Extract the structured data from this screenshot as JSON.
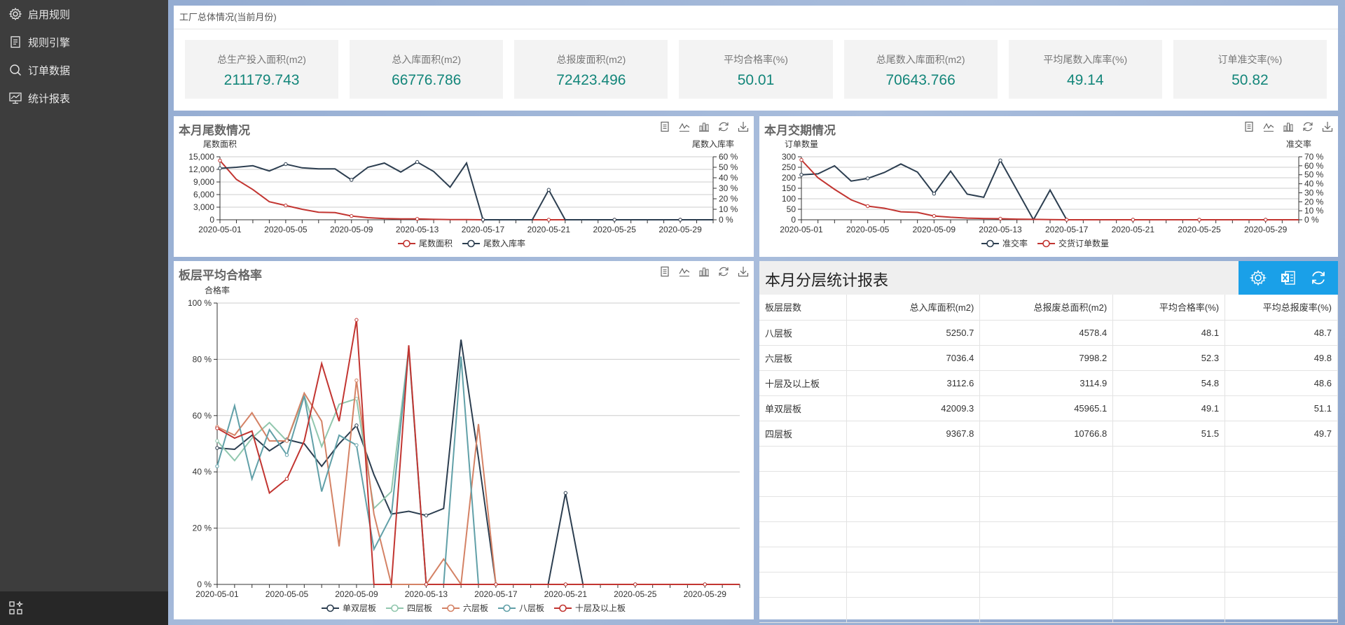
{
  "sidebar": {
    "items": [
      {
        "label": "启用规则",
        "icon": "gear-icon"
      },
      {
        "label": "规则引擎",
        "icon": "document-icon"
      },
      {
        "label": "订单数据",
        "icon": "search-icon"
      },
      {
        "label": "统计报表",
        "icon": "chart-monitor-icon"
      }
    ],
    "bottom_icon": "grid-star-icon"
  },
  "summary": {
    "title": "工厂总体情况(当前月份)",
    "kpis": [
      {
        "label": "总生产投入面积(m2)",
        "value": "211179.743"
      },
      {
        "label": "总入库面积(m2)",
        "value": "66776.786"
      },
      {
        "label": "总报废面积(m2)",
        "value": "72423.496"
      },
      {
        "label": "平均合格率(%)",
        "value": "50.01"
      },
      {
        "label": "总尾数入库面积(m2)",
        "value": "70643.766"
      },
      {
        "label": "平均尾数入库率(%)",
        "value": "49.14"
      },
      {
        "label": "订单准交率(%)",
        "value": "50.82"
      }
    ]
  },
  "colors": {
    "navy": "#2c3e50",
    "red": "#c23531",
    "teal": "#91c7ae",
    "orange": "#d48265",
    "steel": "#61a0a8",
    "kpi_value": "#13867a",
    "report_tools_bg": "#1aa0e8"
  },
  "chart_data": [
    {
      "id": "tail",
      "type": "line",
      "title": "本月尾数情况",
      "ylabel_left": "尾数面积",
      "ylabel_right": "尾数入库率",
      "x": [
        "2020-05-01",
        "2020-05-02",
        "2020-05-03",
        "2020-05-04",
        "2020-05-05",
        "2020-05-06",
        "2020-05-07",
        "2020-05-08",
        "2020-05-09",
        "2020-05-10",
        "2020-05-11",
        "2020-05-12",
        "2020-05-13",
        "2020-05-14",
        "2020-05-15",
        "2020-05-16",
        "2020-05-17",
        "2020-05-18",
        "2020-05-19",
        "2020-05-20",
        "2020-05-21",
        "2020-05-22",
        "2020-05-23",
        "2020-05-24",
        "2020-05-25",
        "2020-05-26",
        "2020-05-27",
        "2020-05-28",
        "2020-05-29",
        "2020-05-30",
        "2020-05-31"
      ],
      "x_tick_labels": [
        "2020-05-01",
        "2020-05-05",
        "2020-05-09",
        "2020-05-13",
        "2020-05-17",
        "2020-05-21",
        "2020-05-25",
        "2020-05-29"
      ],
      "y_left": {
        "min": 0,
        "max": 15000,
        "ticks": [
          "0",
          "3,000",
          "6,000",
          "9,000",
          "12,000",
          "15,000"
        ]
      },
      "y_right": {
        "min": 0,
        "max": 60,
        "ticks": [
          "0 %",
          "10 %",
          "20 %",
          "30 %",
          "40 %",
          "50 %",
          "60 %"
        ]
      },
      "series": [
        {
          "name": "尾数面积",
          "axis": "left",
          "color": "#c23531",
          "values": [
            14100,
            9600,
            7200,
            4300,
            3400,
            2500,
            1800,
            1700,
            900,
            500,
            300,
            200,
            200,
            100,
            50,
            30,
            0,
            0,
            0,
            0,
            0,
            0,
            0,
            0,
            0,
            0,
            0,
            0,
            0,
            0,
            0
          ]
        },
        {
          "name": "尾数入库率",
          "axis": "right",
          "color": "#2c3e50",
          "values": [
            49,
            50,
            51.5,
            46.5,
            53,
            49.5,
            48.5,
            48.5,
            38,
            50,
            54,
            45.5,
            55,
            46,
            31,
            54,
            0,
            0,
            0,
            0,
            28.5,
            0,
            0,
            0,
            0,
            0,
            0,
            0,
            0,
            0,
            0
          ]
        }
      ],
      "legend_position": "bottom-center"
    },
    {
      "id": "delivery",
      "type": "line",
      "title": "本月交期情况",
      "ylabel_left": "订单数量",
      "ylabel_right": "准交率",
      "x": [
        "2020-05-01",
        "2020-05-02",
        "2020-05-03",
        "2020-05-04",
        "2020-05-05",
        "2020-05-06",
        "2020-05-07",
        "2020-05-08",
        "2020-05-09",
        "2020-05-10",
        "2020-05-11",
        "2020-05-12",
        "2020-05-13",
        "2020-05-14",
        "2020-05-15",
        "2020-05-16",
        "2020-05-17",
        "2020-05-18",
        "2020-05-19",
        "2020-05-20",
        "2020-05-21",
        "2020-05-22",
        "2020-05-23",
        "2020-05-24",
        "2020-05-25",
        "2020-05-26",
        "2020-05-27",
        "2020-05-28",
        "2020-05-29",
        "2020-05-30",
        "2020-05-31"
      ],
      "x_tick_labels": [
        "2020-05-01",
        "2020-05-05",
        "2020-05-09",
        "2020-05-13",
        "2020-05-17",
        "2020-05-21",
        "2020-05-25",
        "2020-05-29"
      ],
      "y_left": {
        "min": 0,
        "max": 300,
        "ticks": [
          "0",
          "50",
          "100",
          "150",
          "200",
          "250",
          "300"
        ]
      },
      "y_right": {
        "min": 0,
        "max": 70,
        "ticks": [
          "0 %",
          "10 %",
          "20 %",
          "30 %",
          "40 %",
          "50 %",
          "60 %",
          "70 %"
        ]
      },
      "series": [
        {
          "name": "准交率",
          "axis": "right",
          "color": "#2c3e50",
          "values": [
            50,
            51,
            60,
            43,
            46,
            52.5,
            62,
            53,
            29,
            54,
            28.5,
            25,
            66,
            33,
            0,
            33,
            0,
            0,
            0,
            0,
            0,
            0,
            0,
            0,
            0,
            0,
            0,
            0,
            0,
            0,
            0
          ]
        },
        {
          "name": "交货订单数量",
          "axis": "left",
          "color": "#c23531",
          "values": [
            285,
            200,
            145,
            95,
            65,
            55,
            38,
            35,
            18,
            12,
            8,
            6,
            5,
            3,
            2,
            1,
            0,
            0,
            0,
            0,
            0,
            0,
            0,
            0,
            0,
            0,
            0,
            0,
            0,
            0,
            0
          ]
        }
      ],
      "legend_position": "bottom-center"
    },
    {
      "id": "quality",
      "type": "line",
      "title": "板层平均合格率",
      "ylabel": "合格率",
      "x": [
        "2020-05-01",
        "2020-05-02",
        "2020-05-03",
        "2020-05-04",
        "2020-05-05",
        "2020-05-06",
        "2020-05-07",
        "2020-05-08",
        "2020-05-09",
        "2020-05-10",
        "2020-05-11",
        "2020-05-12",
        "2020-05-13",
        "2020-05-14",
        "2020-05-15",
        "2020-05-16",
        "2020-05-17",
        "2020-05-18",
        "2020-05-19",
        "2020-05-20",
        "2020-05-21",
        "2020-05-22",
        "2020-05-23",
        "2020-05-24",
        "2020-05-25",
        "2020-05-26",
        "2020-05-27",
        "2020-05-28",
        "2020-05-29",
        "2020-05-30",
        "2020-05-31"
      ],
      "x_tick_labels": [
        "2020-05-01",
        "2020-05-05",
        "2020-05-09",
        "2020-05-13",
        "2020-05-17",
        "2020-05-21",
        "2020-05-25",
        "2020-05-29"
      ],
      "y": {
        "min": 0,
        "max": 100,
        "ticks": [
          "0 %",
          "20 %",
          "40 %",
          "60 %",
          "80 %",
          "100 %"
        ]
      },
      "series": [
        {
          "name": "单双层板",
          "color": "#2c3e50",
          "values": [
            48.5,
            48,
            53,
            47.5,
            51.5,
            50,
            42,
            50,
            56.5,
            39,
            25,
            26,
            24.5,
            27,
            87,
            45,
            0,
            0,
            0,
            0,
            32.5,
            0,
            0,
            0,
            0,
            0,
            0,
            0,
            0,
            0,
            0
          ]
        },
        {
          "name": "四层板",
          "color": "#91c7ae",
          "values": [
            51,
            44,
            52,
            57.5,
            51,
            67,
            49,
            64,
            66,
            27,
            33,
            84,
            0,
            0,
            0,
            0,
            0,
            0,
            0,
            0,
            0,
            0,
            0,
            0,
            0,
            0,
            0,
            0,
            0,
            0,
            0
          ]
        },
        {
          "name": "六层板",
          "color": "#d48265",
          "values": [
            56,
            53,
            61,
            51,
            51,
            68,
            58,
            13.5,
            72.5,
            25,
            0,
            0,
            0,
            9,
            0,
            57,
            0,
            0,
            0,
            0,
            0,
            0,
            0,
            0,
            0,
            0,
            0,
            0,
            0,
            0,
            0
          ]
        },
        {
          "name": "八层板",
          "color": "#61a0a8",
          "values": [
            42,
            63.5,
            37.5,
            55,
            46,
            67,
            33,
            53,
            49.5,
            12.5,
            24.5,
            84,
            0,
            0,
            81,
            0,
            0,
            0,
            0,
            0,
            0,
            0,
            0,
            0,
            0,
            0,
            0,
            0,
            0,
            0,
            0
          ]
        },
        {
          "name": "十层及以上板",
          "color": "#c23531",
          "values": [
            55.5,
            52,
            54.5,
            32.5,
            37.5,
            51,
            78.5,
            58,
            94,
            0,
            0,
            85,
            0,
            0,
            0,
            0,
            0,
            0,
            0,
            0,
            0,
            0,
            0,
            0,
            0,
            0,
            0,
            0,
            0,
            0,
            0
          ]
        }
      ],
      "legend_position": "bottom-center"
    },
    {
      "id": "report",
      "type": "table",
      "title": "本月分层统计报表",
      "columns": [
        "板层层数",
        "总入库面积(m2)",
        "总报废总面积(m2)",
        "平均合格率(%)",
        "平均总报废率(%)"
      ],
      "rows": [
        [
          "八层板",
          "5250.7",
          "4578.4",
          "48.1",
          "48.7"
        ],
        [
          "六层板",
          "7036.4",
          "7998.2",
          "52.3",
          "49.8"
        ],
        [
          "十层及以上板",
          "3112.6",
          "3114.9",
          "54.8",
          "48.6"
        ],
        [
          "单双层板",
          "42009.3",
          "45965.1",
          "49.1",
          "51.1"
        ],
        [
          "四层板",
          "9367.8",
          "10766.8",
          "51.5",
          "49.7"
        ]
      ],
      "empty_rows": 7
    }
  ]
}
